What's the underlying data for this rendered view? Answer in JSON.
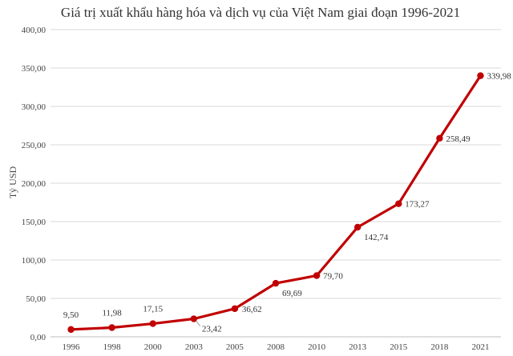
{
  "chart_data": {
    "type": "line",
    "title": "Giá trị xuất khẩu hàng hóa và dịch vụ của Việt Nam giai đoạn 1996-2021",
    "xlabel": "",
    "ylabel": "Tỷ USD",
    "categories": [
      "1996",
      "1998",
      "2000",
      "2003",
      "2005",
      "2008",
      "2010",
      "2013",
      "2015",
      "2018",
      "2021"
    ],
    "series": [
      {
        "values": [
          9.5,
          11.98,
          17.15,
          23.42,
          36.62,
          69.69,
          79.7,
          142.74,
          173.27,
          258.49,
          339.98
        ],
        "labels": [
          "9,50",
          "11,98",
          "17,15",
          "23,42",
          "36,62",
          "69,69",
          "79,70",
          "142,74",
          "173,27",
          "258,49",
          "339,98"
        ],
        "color": "#c00000"
      }
    ],
    "ylim": [
      0,
      400
    ],
    "yticks": [
      "0,00",
      "50,00",
      "100,00",
      "150,00",
      "200,00",
      "250,00",
      "300,00",
      "350,00",
      "400,00"
    ],
    "grid": true,
    "legend": "none"
  }
}
